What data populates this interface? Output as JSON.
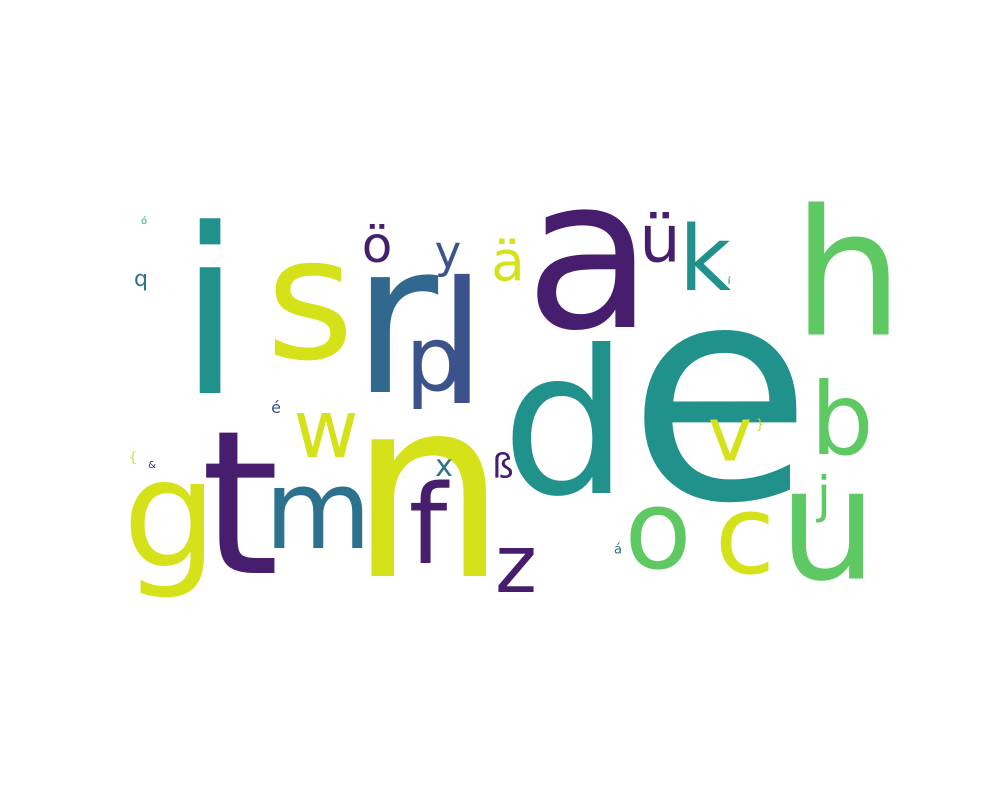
{
  "palette": {
    "viridis_deep_purple": "#471d6e",
    "viridis_blue": "#3b528b",
    "viridis_steel": "#2c728e",
    "viridis_teal": "#21918c",
    "viridis_green_teal": "#27ad81",
    "viridis_green": "#5ec962",
    "viridis_lime": "#bddf26",
    "viridis_yellow": "#d7e219"
  },
  "words": [
    {
      "text": "e",
      "color": "#21918c"
    },
    {
      "text": "n",
      "color": "#d5e21a"
    },
    {
      "text": "a",
      "color": "#471d6e"
    },
    {
      "text": "i",
      "color": "#21918c"
    },
    {
      "text": "s",
      "color": "#d5e21a"
    },
    {
      "text": "r",
      "color": "#31688e"
    },
    {
      "text": "t",
      "color": "#471d6e"
    },
    {
      "text": "d",
      "color": "#21918c"
    },
    {
      "text": "h",
      "color": "#5ec962"
    },
    {
      "text": "u",
      "color": "#5ec962"
    },
    {
      "text": "l",
      "color": "#3b528b"
    },
    {
      "text": "g",
      "color": "#d5e21a"
    },
    {
      "text": "c",
      "color": "#d5e21a"
    },
    {
      "text": "o",
      "color": "#5ec962"
    },
    {
      "text": "m",
      "color": "#2c728e"
    },
    {
      "text": "f",
      "color": "#471d6e"
    },
    {
      "text": "b",
      "color": "#5ec962"
    },
    {
      "text": "p",
      "color": "#3b528b"
    },
    {
      "text": "k",
      "color": "#21918c"
    },
    {
      "text": "w",
      "color": "#d5e21a"
    },
    {
      "text": "z",
      "color": "#471d6e"
    },
    {
      "text": "ü",
      "color": "#471d6e"
    },
    {
      "text": "v",
      "color": "#d5e21a"
    },
    {
      "text": "ä",
      "color": "#d5e21a"
    },
    {
      "text": "ö",
      "color": "#471d6e"
    },
    {
      "text": "y",
      "color": "#3b528b"
    },
    {
      "text": "j",
      "color": "#5ec962"
    },
    {
      "text": "ß",
      "color": "#471d6e"
    },
    {
      "text": "x",
      "color": "#2c728e"
    },
    {
      "text": "q",
      "color": "#2c728e"
    },
    {
      "text": "é",
      "color": "#3b528b"
    },
    {
      "text": "á",
      "color": "#31688e"
    },
    {
      "text": "ó",
      "color": "#27ad81"
    },
    {
      "text": "&",
      "color": "#471d6e"
    },
    {
      "text": "{",
      "color": "#bddf26"
    },
    {
      "text": "}",
      "color": "#bddf26"
    },
    {
      "text": "í",
      "color": "#31688e"
    }
  ]
}
